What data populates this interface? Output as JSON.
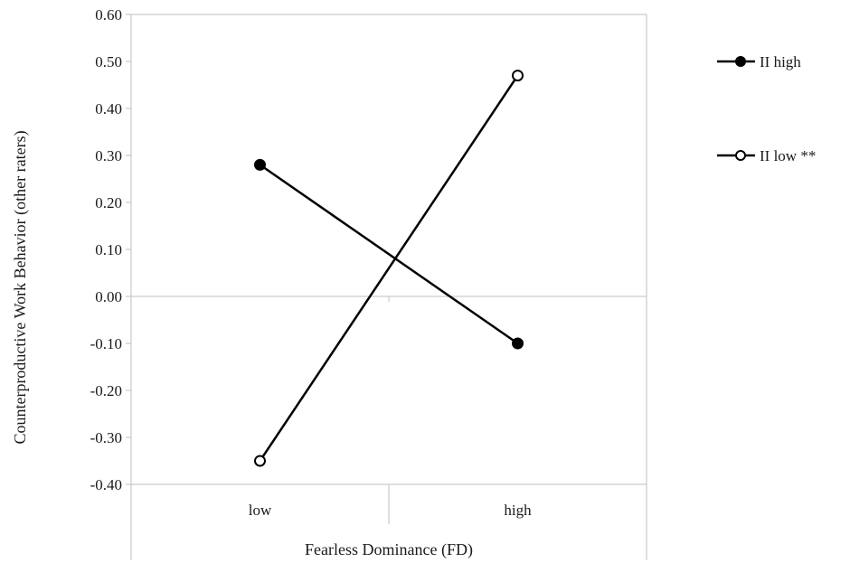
{
  "chart_data": {
    "type": "line",
    "xlabel": "Fearless Dominance (FD)",
    "ylabel": "Counterproductive Work Behavior (other raters)",
    "categories": [
      "low",
      "high"
    ],
    "ylim": [
      -0.4,
      0.6
    ],
    "yticks": [
      "0.60",
      "0.50",
      "0.40",
      "0.30",
      "0.20",
      "0.10",
      "0.00",
      "-0.10",
      "-0.20",
      "-0.30",
      "-0.40"
    ],
    "ytick_values": [
      0.6,
      0.5,
      0.4,
      0.3,
      0.2,
      0.1,
      0.0,
      -0.1,
      -0.2,
      -0.3,
      -0.4
    ],
    "grid": false,
    "legend_position": "right",
    "series": [
      {
        "name": "II high",
        "values": [
          0.28,
          -0.1
        ],
        "marker": "filled-circle",
        "color": "#000000"
      },
      {
        "name": "II low **",
        "values": [
          -0.35,
          0.47
        ],
        "marker": "open-circle",
        "color": "#000000"
      }
    ]
  }
}
